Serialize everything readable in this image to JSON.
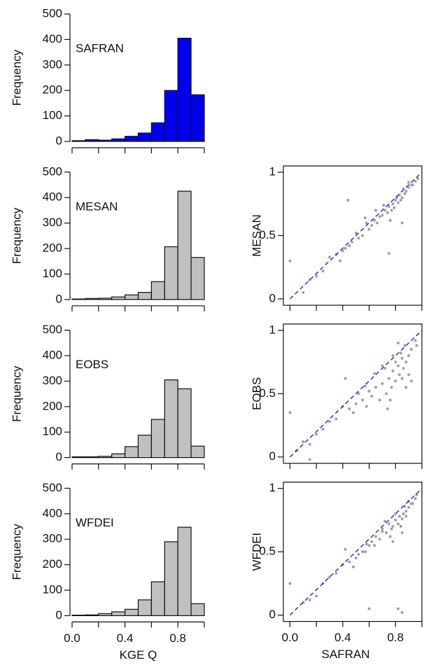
{
  "chart_data": [
    {
      "type": "histogram",
      "title": "SAFRAN",
      "ylabel": "Frequency",
      "color": "#0000ee",
      "bins": [
        0,
        0.1,
        0.2,
        0.3,
        0.4,
        0.5,
        0.6,
        0.7,
        0.8,
        0.9,
        1.0
      ],
      "values": [
        3,
        7,
        5,
        10,
        20,
        33,
        73,
        200,
        405,
        183
      ],
      "xlim": [
        0,
        1
      ],
      "xticks_unlabeled": [
        0,
        0.2,
        0.4,
        0.6,
        0.8,
        1.0
      ],
      "ylim": [
        0,
        500
      ],
      "yticks": [
        0,
        100,
        200,
        300,
        400,
        500
      ]
    },
    {
      "type": "histogram",
      "title": "MESAN",
      "ylabel": "Frequency",
      "color": "#c0c0c0",
      "bins": [
        0,
        0.1,
        0.2,
        0.3,
        0.4,
        0.5,
        0.6,
        0.7,
        0.8,
        0.9,
        1.0
      ],
      "values": [
        2,
        4,
        5,
        10,
        18,
        28,
        70,
        207,
        425,
        165
      ],
      "xlim": [
        0,
        1
      ],
      "xticks_unlabeled": [
        0,
        0.2,
        0.4,
        0.6,
        0.8,
        1.0
      ],
      "ylim": [
        0,
        500
      ],
      "yticks": [
        0,
        100,
        200,
        300,
        400,
        500
      ]
    },
    {
      "type": "histogram",
      "title": "EOBS",
      "ylabel": "Frequency",
      "color": "#c0c0c0",
      "bins": [
        0,
        0.1,
        0.2,
        0.3,
        0.4,
        0.5,
        0.6,
        0.7,
        0.8,
        0.9,
        1.0
      ],
      "values": [
        3,
        3,
        5,
        15,
        43,
        88,
        150,
        305,
        270,
        45
      ],
      "xlim": [
        0,
        1
      ],
      "xticks_unlabeled": [
        0,
        0.2,
        0.4,
        0.6,
        0.8,
        1.0
      ],
      "ylim": [
        0,
        500
      ],
      "yticks": [
        0,
        100,
        200,
        300,
        400,
        500
      ]
    },
    {
      "type": "histogram",
      "title": "WFDEI",
      "ylabel": "Frequency",
      "xlabel": "KGE Q",
      "color": "#c0c0c0",
      "bins": [
        0,
        0.1,
        0.2,
        0.3,
        0.4,
        0.5,
        0.6,
        0.7,
        0.8,
        0.9,
        1.0
      ],
      "values": [
        2,
        3,
        8,
        15,
        25,
        62,
        133,
        290,
        347,
        47
      ],
      "xlim": [
        0,
        1
      ],
      "xticks": [
        {
          "value": 0,
          "label": "0.0"
        },
        0.4,
        0.8
      ],
      "xticks_unlabeled": [
        0.2,
        0.6,
        1.0
      ],
      "ylim": [
        0,
        500
      ],
      "yticks": [
        0,
        100,
        200,
        300,
        400,
        500
      ]
    },
    {
      "type": "scatter",
      "ylabel": "MESAN",
      "color": "#a0a0a0",
      "line_color": "#2233dd",
      "x": [
        0.92,
        0.9,
        0.88,
        0.86,
        0.85,
        0.83,
        0.82,
        0.8,
        0.79,
        0.78,
        0.77,
        0.75,
        0.74,
        0.72,
        0.7,
        0.68,
        0.66,
        0.64,
        0.62,
        0.6,
        0.58,
        0.55,
        0.52,
        0.5,
        0.47,
        0.45,
        0.42,
        0.4,
        0.35,
        0.3,
        0.25,
        0.2,
        0.15,
        0.1,
        0.0,
        0.95,
        0.97,
        0.93,
        0.87,
        0.84,
        0.81,
        0.76,
        0.71,
        0.65,
        0.57,
        0.44,
        0.38,
        0.85,
        0.9,
        0.75
      ],
      "values": [
        0.9,
        0.88,
        0.85,
        0.87,
        0.8,
        0.82,
        0.76,
        0.78,
        0.72,
        0.75,
        0.7,
        0.73,
        0.68,
        0.7,
        0.66,
        0.65,
        0.6,
        0.62,
        0.58,
        0.55,
        0.6,
        0.5,
        0.48,
        0.52,
        0.45,
        0.42,
        0.4,
        0.38,
        0.35,
        0.33,
        0.22,
        0.18,
        0.15,
        0.05,
        0.3,
        0.93,
        0.95,
        0.9,
        0.83,
        0.78,
        0.8,
        0.62,
        0.74,
        0.7,
        0.64,
        0.78,
        0.3,
        0.6,
        0.92,
        0.36
      ],
      "xlim": [
        -0.05,
        1.0
      ],
      "xticks_unlabeled": [
        0,
        0.2,
        0.4,
        0.6,
        0.8,
        1.0
      ],
      "ylim": [
        -0.05,
        1.05
      ],
      "yticks": [
        0,
        0.5,
        1
      ]
    },
    {
      "type": "scatter",
      "ylabel": "EOBS",
      "color": "#a0a0a0",
      "line_color": "#2233dd",
      "x": [
        0.95,
        0.92,
        0.9,
        0.88,
        0.86,
        0.85,
        0.83,
        0.82,
        0.8,
        0.78,
        0.77,
        0.75,
        0.73,
        0.7,
        0.68,
        0.65,
        0.62,
        0.6,
        0.58,
        0.55,
        0.52,
        0.5,
        0.45,
        0.4,
        0.35,
        0.3,
        0.25,
        0.2,
        0.15,
        0.1,
        0.05,
        0.9,
        0.87,
        0.84,
        0.8,
        0.76,
        0.72,
        0.92,
        0.96,
        0.88,
        0.85,
        0.78,
        0.7,
        0.64,
        0.57,
        0.48,
        0.42,
        0.82,
        0.74,
        0.0,
        0.15
      ],
      "values": [
        0.92,
        0.85,
        0.8,
        0.75,
        0.7,
        0.78,
        0.65,
        0.72,
        0.6,
        0.68,
        0.55,
        0.62,
        0.5,
        0.58,
        0.45,
        0.55,
        0.48,
        0.52,
        0.4,
        0.45,
        0.5,
        0.42,
        0.38,
        0.4,
        0.3,
        0.28,
        0.22,
        0.18,
        0.1,
        0.12,
        0.05,
        0.65,
        0.88,
        0.82,
        0.75,
        0.45,
        0.7,
        0.6,
        0.88,
        0.55,
        0.62,
        0.8,
        0.72,
        0.66,
        0.56,
        0.35,
        0.62,
        0.9,
        0.38,
        0.35,
        -0.02
      ],
      "xlim": [
        -0.05,
        1.0
      ],
      "xticks_unlabeled": [
        0,
        0.2,
        0.4,
        0.6,
        0.8,
        1.0
      ],
      "ylim": [
        -0.05,
        1.05
      ],
      "yticks": [
        0,
        0.5,
        1
      ]
    },
    {
      "type": "scatter",
      "ylabel": "WFDEI",
      "xlabel": "SAFRAN",
      "color": "#a0a0a0",
      "line_color": "#2233dd",
      "x": [
        0.95,
        0.92,
        0.9,
        0.88,
        0.86,
        0.85,
        0.83,
        0.82,
        0.8,
        0.78,
        0.77,
        0.75,
        0.73,
        0.7,
        0.68,
        0.65,
        0.62,
        0.6,
        0.58,
        0.55,
        0.52,
        0.5,
        0.45,
        0.4,
        0.35,
        0.3,
        0.25,
        0.2,
        0.15,
        0.1,
        0.0,
        0.9,
        0.87,
        0.84,
        0.8,
        0.76,
        0.72,
        0.93,
        0.96,
        0.88,
        0.85,
        0.78,
        0.7,
        0.64,
        0.57,
        0.48,
        0.42,
        0.82,
        0.85,
        0.6
      ],
      "values": [
        0.92,
        0.88,
        0.85,
        0.82,
        0.8,
        0.76,
        0.78,
        0.72,
        0.75,
        0.7,
        0.68,
        0.72,
        0.65,
        0.66,
        0.6,
        0.62,
        0.58,
        0.55,
        0.56,
        0.5,
        0.48,
        0.45,
        0.42,
        0.4,
        0.33,
        0.3,
        0.25,
        0.15,
        0.12,
        0.1,
        0.25,
        0.9,
        0.86,
        0.7,
        0.8,
        0.62,
        0.74,
        0.88,
        0.95,
        0.78,
        0.65,
        0.58,
        0.68,
        0.55,
        0.5,
        0.38,
        0.52,
        0.05,
        0.02,
        0.05
      ],
      "xlim": [
        -0.05,
        1.0
      ],
      "xticks": [
        {
          "value": 0,
          "label": "0.0"
        },
        0.4,
        0.8
      ],
      "xticks_unlabeled": [
        0.2,
        0.6,
        1.0
      ],
      "ylim": [
        -0.05,
        1.05
      ],
      "yticks": [
        0,
        0.5,
        1
      ]
    }
  ]
}
